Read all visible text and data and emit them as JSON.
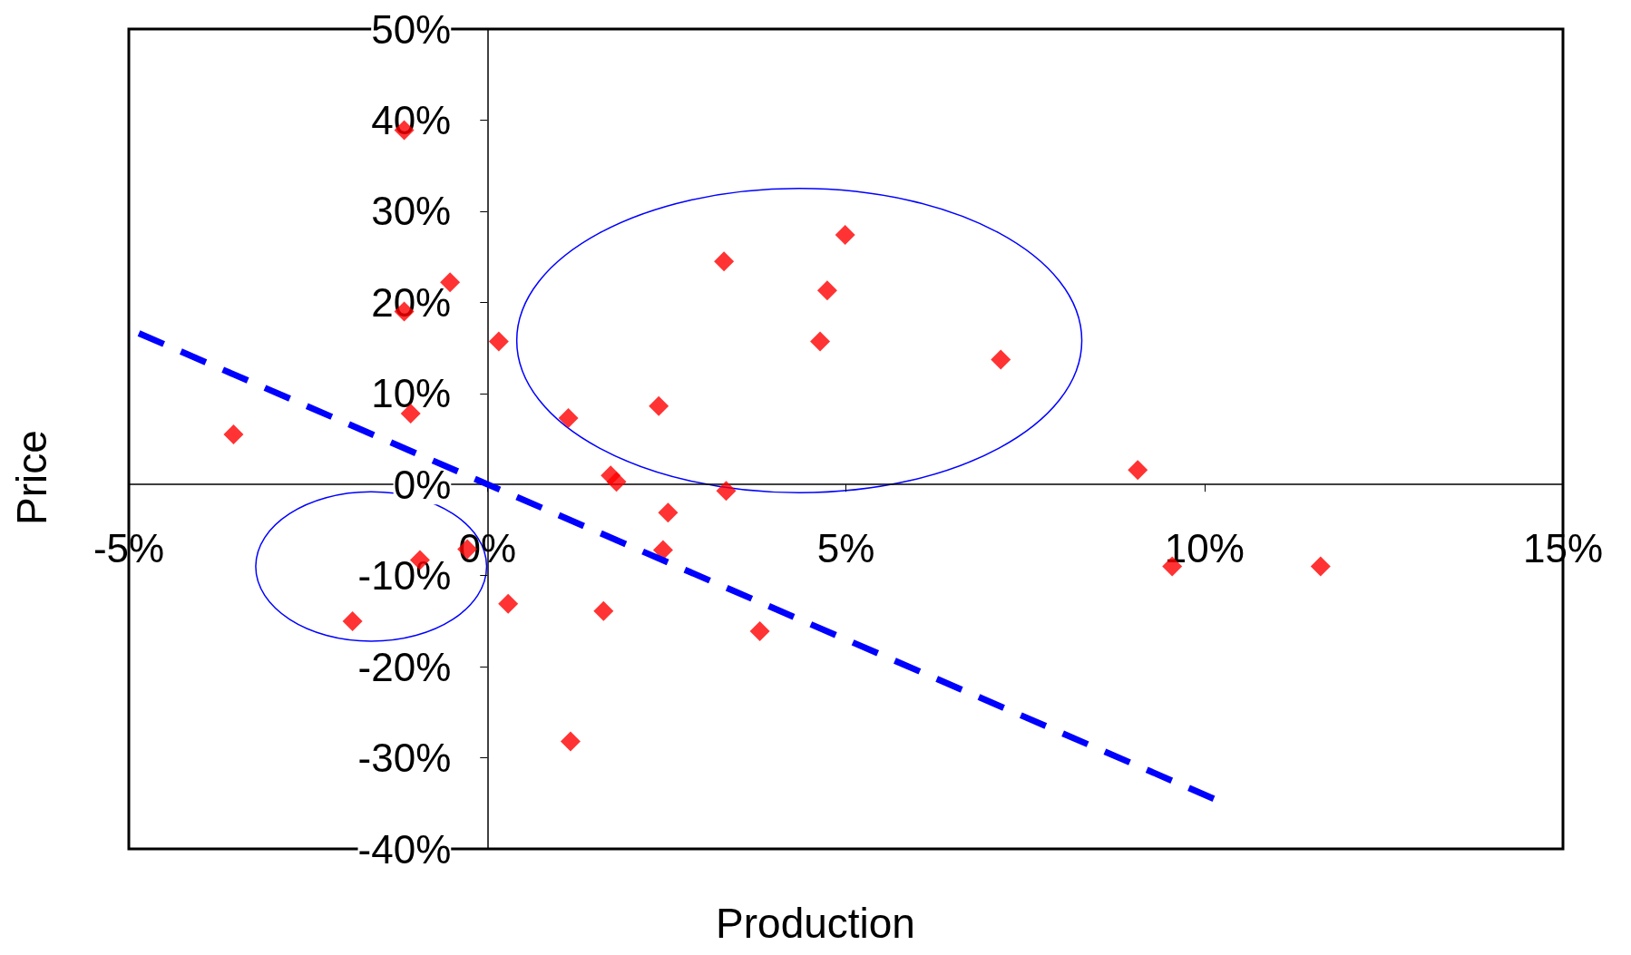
{
  "chart_data": {
    "type": "scatter",
    "xlabel": "Production",
    "ylabel": "Price",
    "xlim": [
      -5,
      15
    ],
    "xticks": [
      {
        "value": -5,
        "label": "-5%"
      },
      {
        "value": 0,
        "label": "0%"
      },
      {
        "value": 5,
        "label": "5%"
      },
      {
        "value": 10,
        "label": "10%"
      },
      {
        "value": 15,
        "label": "15%"
      }
    ],
    "ylim": [
      -40,
      50
    ],
    "yticks": [
      {
        "value": -40,
        "label": "-40%"
      },
      {
        "value": -30,
        "label": "-30%"
      },
      {
        "value": -20,
        "label": "-20%"
      },
      {
        "value": -10,
        "label": "-10%"
      },
      {
        "value": 0,
        "label": "0%"
      },
      {
        "value": 10,
        "label": "10%"
      },
      {
        "value": 20,
        "label": "20%"
      },
      {
        "value": 30,
        "label": "30%"
      },
      {
        "value": 40,
        "label": "40%"
      },
      {
        "value": 50,
        "label": "50%"
      }
    ],
    "grid": false,
    "marker": "diamond",
    "series": [
      {
        "color": "#ff0000",
        "x": [
          -1.16,
          -0.52,
          -1.16,
          0.16,
          -1.07,
          -3.54,
          1.13,
          2.39,
          3.3,
          4.99,
          4.74,
          4.64,
          7.16,
          9.07,
          1.72,
          1.8,
          3.33,
          2.52,
          2.45,
          -0.28,
          -0.94,
          9.55,
          11.62,
          -1.88,
          0.29,
          1.62,
          3.8,
          1.16
        ],
        "values": [
          38.9,
          22.2,
          19,
          15.7,
          7.8,
          5.5,
          7.3,
          8.6,
          24.5,
          27.4,
          21.3,
          15.7,
          13.7,
          1.6,
          1,
          0.3,
          -0.7,
          -3.1,
          -7.2,
          -7.1,
          -8.3,
          -9,
          -9,
          -15,
          -13.1,
          -13.9,
          -16.1,
          -28.2
        ]
      },
      {
        "type": "line",
        "color": "#0000ff",
        "line_style": "dashed",
        "marker": "none",
        "x": [
          -4.86,
          10.13
        ],
        "values": [
          16.6,
          -34.5
        ]
      }
    ]
  }
}
